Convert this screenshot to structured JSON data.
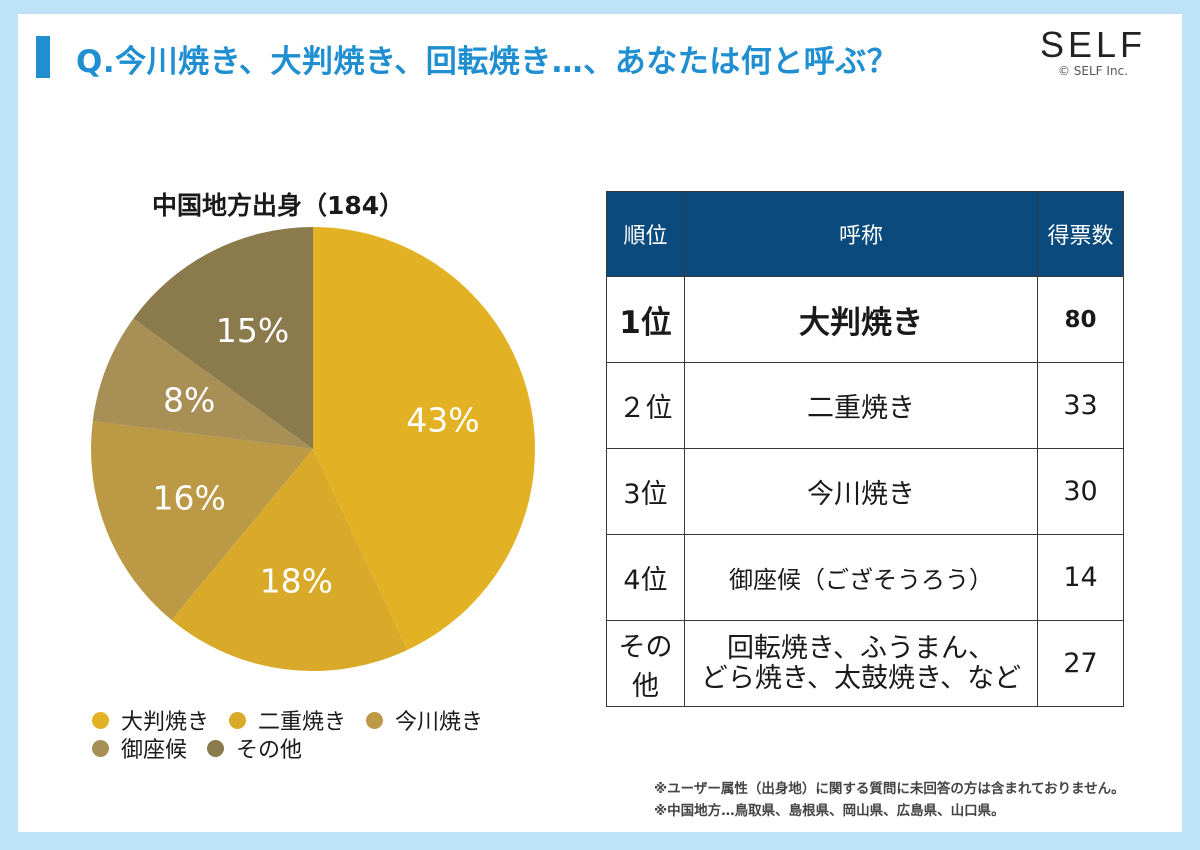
{
  "header": {
    "title": "Q.今川焼き、大判焼き、回転焼き…、あなたは何と呼ぶ？",
    "logo_text": "SELF",
    "copyright": "© SELF Inc."
  },
  "chart_data": {
    "type": "pie",
    "title": "中国地方出身（184）",
    "categories": [
      "大判焼き",
      "二重焼き",
      "今川焼き",
      "御座候",
      "その他"
    ],
    "values": [
      43,
      18,
      16,
      8,
      15
    ],
    "value_labels": [
      "43%",
      "18%",
      "16%",
      "8%",
      "15%"
    ],
    "colors": [
      "#e3b224",
      "#d9aa2a",
      "#bc9a45",
      "#a78f55",
      "#8b7a4c"
    ],
    "legend_position": "bottom"
  },
  "table": {
    "headers": [
      "順位",
      "呼称",
      "得票数"
    ],
    "rows": [
      {
        "rank": "1位",
        "name": "大判焼き",
        "count": "80"
      },
      {
        "rank": "２位",
        "name": "二重焼き",
        "count": "33"
      },
      {
        "rank": "3位",
        "name": "今川焼き",
        "count": "30"
      },
      {
        "rank": "4位",
        "name": "御座候（ござそうろう）",
        "count": "14"
      },
      {
        "rank": "その他",
        "name_line1": "回転焼き、ふうまん、",
        "name_line2": "どら焼き、太鼓焼き、など",
        "count": "27"
      }
    ]
  },
  "footnotes": [
    "※ユーザー属性（出身地）に関する質問に未回答の方は含まれておりません。",
    "※中国地方…鳥取県、島根県、岡山県、広島県、山口県。"
  ]
}
